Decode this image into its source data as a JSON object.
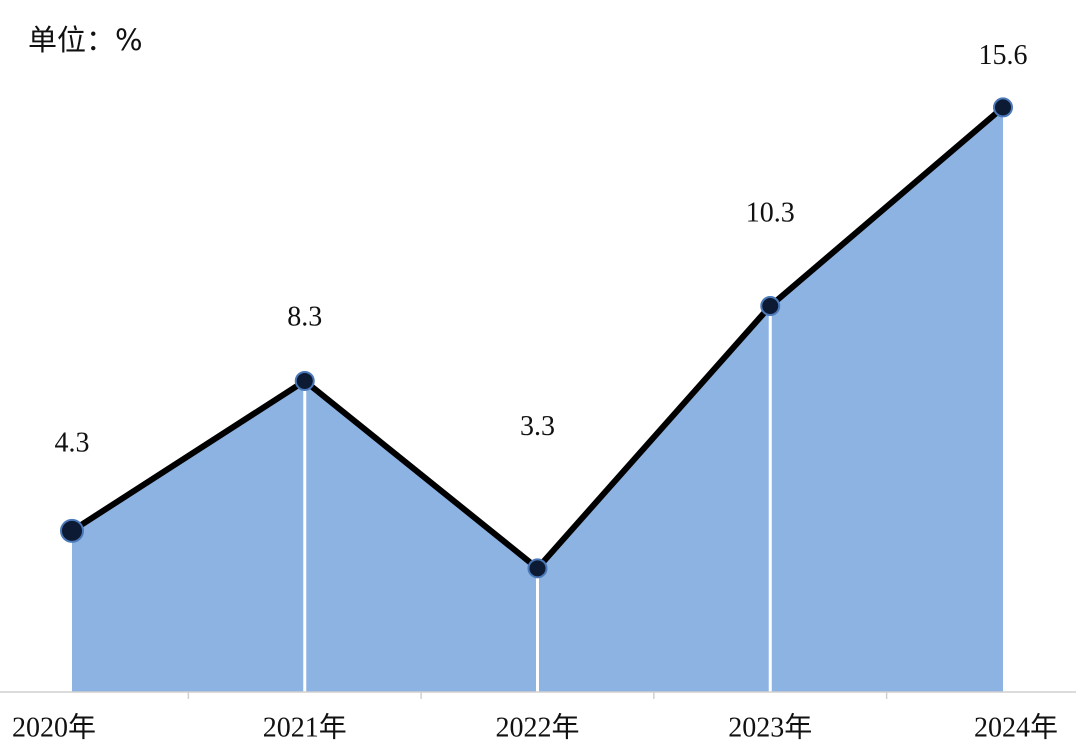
{
  "chart_data": {
    "type": "area",
    "unit_label": "单位：%",
    "categories": [
      "2020年",
      "2021年",
      "2022年",
      "2023年",
      "2024年"
    ],
    "values": [
      4.3,
      8.3,
      3.3,
      10.3,
      15.6
    ],
    "color": "#8db3e2",
    "line_color": "#000000",
    "marker_color": "#0d1a33",
    "ylim": [
      0,
      16
    ]
  }
}
